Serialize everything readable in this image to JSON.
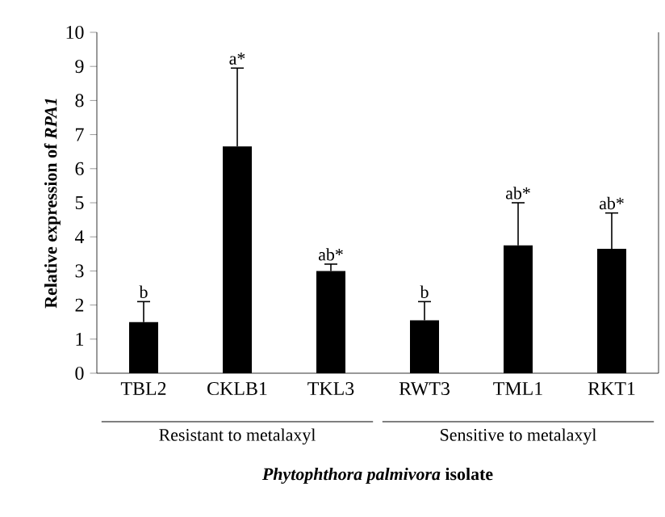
{
  "chart_data": {
    "type": "bar",
    "color": "#000000",
    "categories": [
      "TBL2",
      "CKLB1",
      "TKL3",
      "RWT3",
      "TML1",
      "RKT1"
    ],
    "values": [
      1.5,
      6.65,
      3.0,
      1.55,
      3.75,
      3.65
    ],
    "errors": [
      0.6,
      2.3,
      0.2,
      0.55,
      1.25,
      1.05
    ],
    "ylim": [
      0,
      10
    ],
    "yticks": [
      0,
      1,
      2,
      3,
      4,
      5,
      6,
      7,
      8,
      9,
      10
    ],
    "grid": false,
    "xlabel": "*Phytophthora palmivora* isolate",
    "ylabel": "Relative expression of *RPA1*",
    "annotations": [
      {
        "text": "b",
        "x": "TBL2",
        "y": 2.1
      },
      {
        "text": "a*",
        "x": "CKLB1",
        "y": 8.95
      },
      {
        "text": "ab*",
        "x": "TKL3",
        "y": 3.2
      },
      {
        "text": "b",
        "x": "RWT3",
        "y": 2.1
      },
      {
        "text": "ab*",
        "x": "TML1",
        "y": 5.0
      },
      {
        "text": "ab*",
        "x": "RKT1",
        "y": 4.7
      },
      "Resistant to metalaxyl",
      "Sensitive to metalaxyl"
    ]
  }
}
